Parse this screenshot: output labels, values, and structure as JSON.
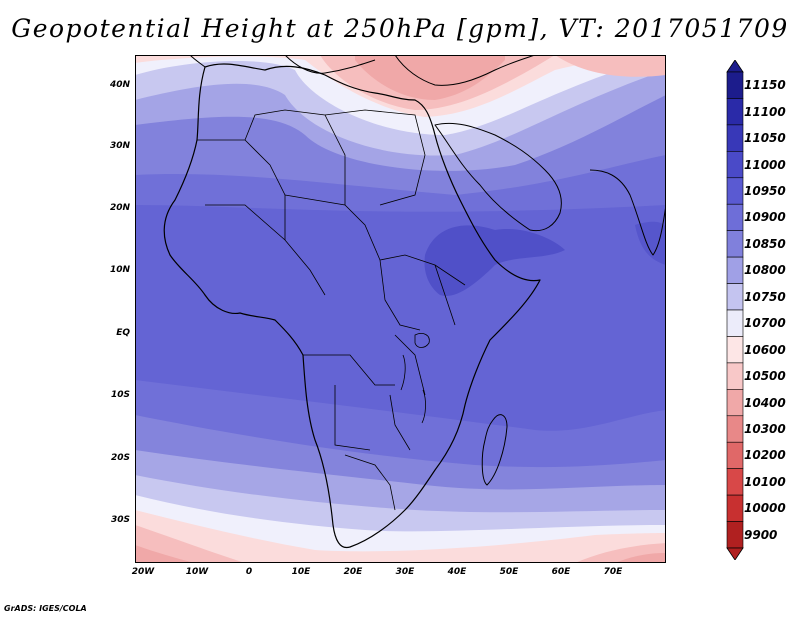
{
  "title": "Geopotential Height at 250hPa [gpm], VT: 2017051709",
  "footer": "GrADS: IGES/COLA",
  "map": {
    "lat_labels": [
      "40N",
      "30N",
      "20N",
      "10N",
      "EQ",
      "10S",
      "20S",
      "30S"
    ],
    "lon_labels": [
      "20W",
      "10W",
      "0",
      "10E",
      "20E",
      "30E",
      "40E",
      "50E",
      "60E",
      "70E"
    ]
  },
  "colorbar": {
    "levels": [
      "11150",
      "11100",
      "11050",
      "11000",
      "10950",
      "10900",
      "10850",
      "10800",
      "10750",
      "10700",
      "10600",
      "10500",
      "10400",
      "10300",
      "10200",
      "10100",
      "10000",
      "9900"
    ],
    "colors": [
      "#1c1c8c",
      "#2a2aa8",
      "#3838b8",
      "#4a4ac8",
      "#5a5ad2",
      "#6e6ed8",
      "#8080dc",
      "#a0a0e6",
      "#c4c4f0",
      "#ececfa",
      "#fde6e6",
      "#f8c8c8",
      "#f0a8a8",
      "#e88888",
      "#e06868",
      "#d84848",
      "#c83030",
      "#b02020"
    ]
  }
}
